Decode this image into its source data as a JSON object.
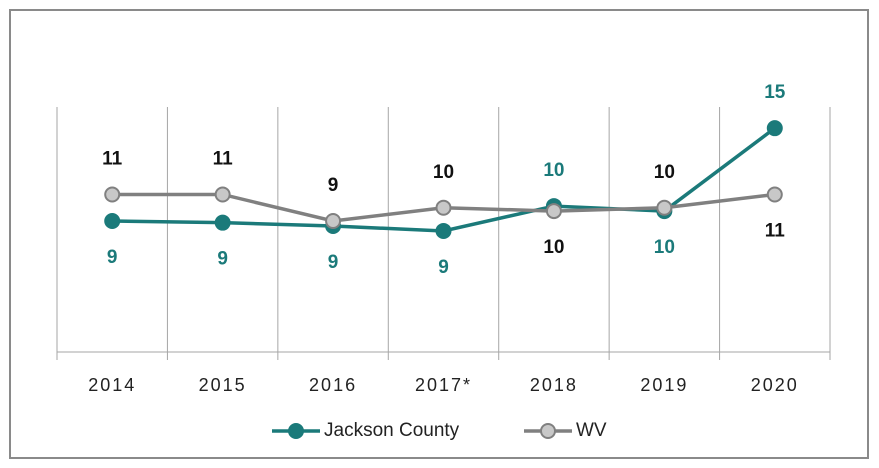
{
  "chart_data": {
    "type": "line",
    "categories": [
      "2014",
      "2015",
      "2016",
      "2017*",
      "2018",
      "2019",
      "2020"
    ],
    "series": [
      {
        "name": "Jackson County",
        "color": "#1b7a7a",
        "values": [
          9.4,
          9.3,
          9.1,
          8.8,
          10.3,
          10.0,
          15.0
        ],
        "value_labels": [
          "9",
          "9",
          "9",
          "9",
          "10",
          "10",
          "15"
        ]
      },
      {
        "name": "WV",
        "color": "#808080",
        "values": [
          11.0,
          11.0,
          9.4,
          10.2,
          10.0,
          10.2,
          11.0
        ],
        "value_labels": [
          "11",
          "11",
          "9",
          "10",
          "10",
          "10",
          "11"
        ]
      }
    ],
    "ylim": [
      1.5,
      17
    ],
    "legend": "bottom"
  }
}
